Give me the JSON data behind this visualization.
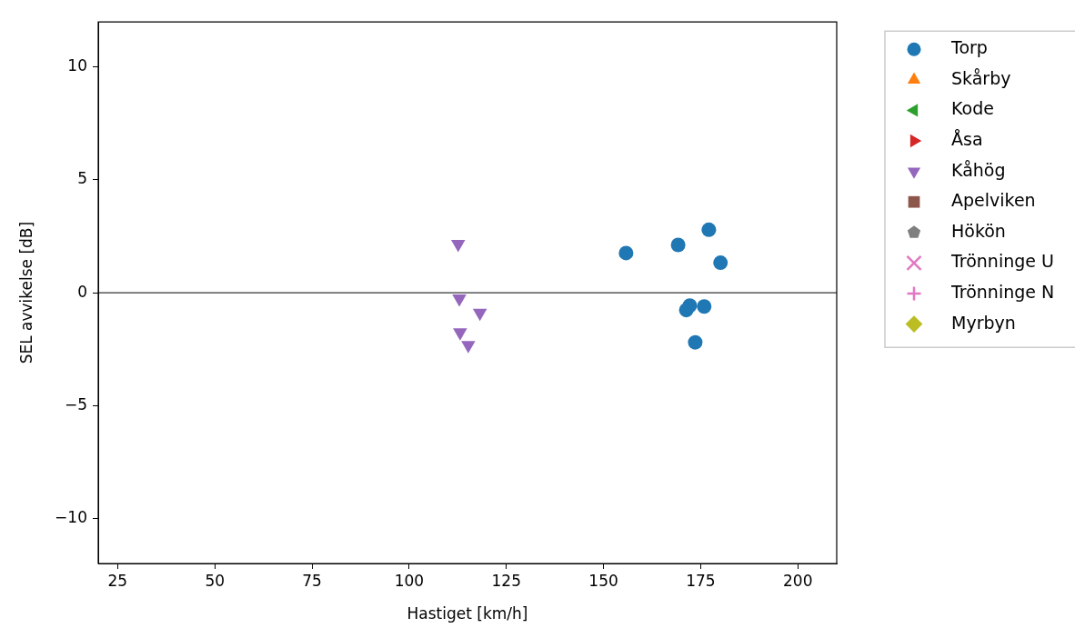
{
  "chart_data": {
    "type": "scatter",
    "xlabel": "Hastiget [km/h]",
    "ylabel": "SEL avvikelse [dB]",
    "xlim": [
      20,
      210
    ],
    "xticks": [
      25,
      50,
      75,
      100,
      125,
      150,
      175,
      200
    ],
    "ylim": [
      -12,
      12
    ],
    "yticks": [
      -10,
      -5,
      0,
      5,
      10
    ],
    "grid": false,
    "legend": "right",
    "ref_lines": [
      {
        "axis": "y",
        "value": 0,
        "color": "#000000"
      }
    ],
    "series": [
      {
        "name": "Torp",
        "color": "#1f77b4",
        "marker": "circle",
        "x": [
          155.8,
          169.2,
          177.1,
          180.1,
          171.3,
          172.2,
          175.9,
          173.6
        ],
        "values": [
          1.76,
          2.12,
          2.79,
          1.33,
          -0.77,
          -0.57,
          -0.61,
          -2.2
        ]
      },
      {
        "name": "Skårby",
        "color": "#ff7f0e",
        "marker": "triangle"
      },
      {
        "name": "Kode",
        "color": "#2ca02c",
        "marker": "triangle-left"
      },
      {
        "name": "Åsa",
        "color": "#d62728",
        "marker": "triangle-right"
      },
      {
        "name": "Kåhög",
        "color": "#9467bd",
        "marker": "triangle-down",
        "x": [
          112.6,
          112.9,
          118.2,
          113.1,
          115.2
        ],
        "values": [
          2.16,
          -0.26,
          -0.89,
          -1.76,
          -2.32
        ]
      },
      {
        "name": "Apelviken",
        "color": "#8c564b",
        "marker": "square"
      },
      {
        "name": "Hökön",
        "color": "#7f7f7f",
        "marker": "pentagon"
      },
      {
        "name": "Trönninge U",
        "color": "#e377c2",
        "marker": "cross"
      },
      {
        "name": "Trönninge N",
        "color": "#e377c2",
        "marker": "plus"
      },
      {
        "name": "Myrbyn",
        "color": "#bcbd22",
        "marker": "diamond"
      }
    ]
  }
}
